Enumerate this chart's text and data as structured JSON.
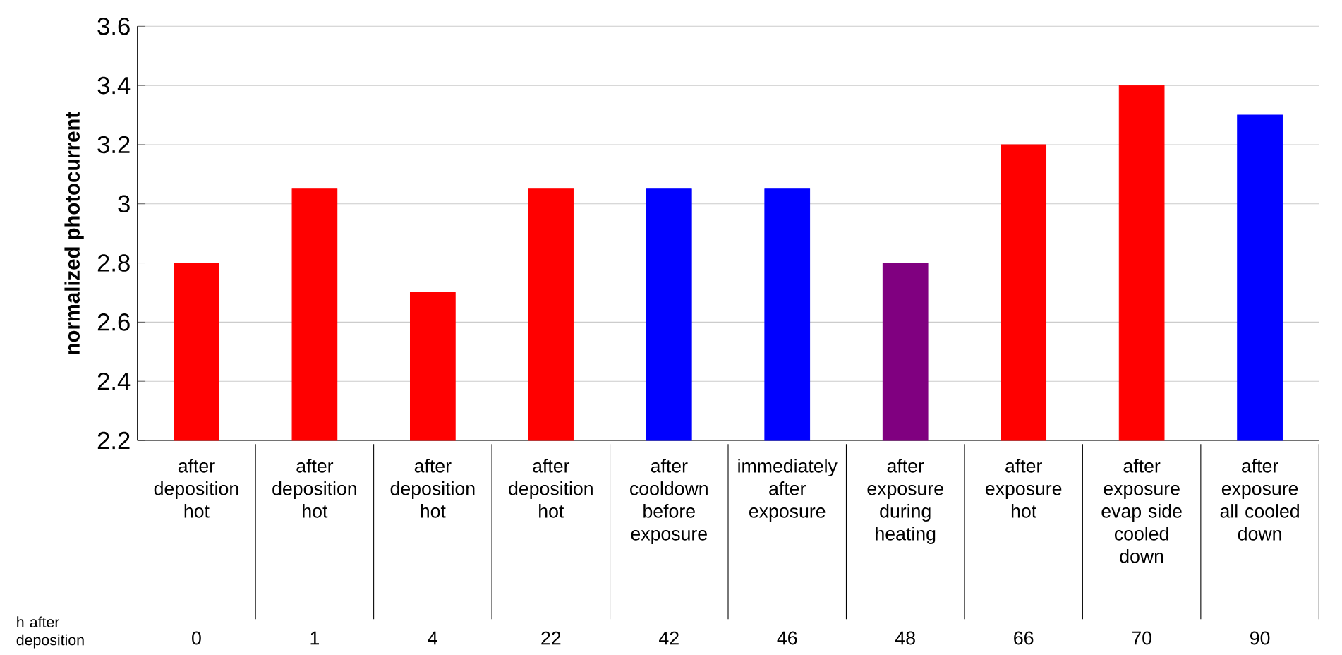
{
  "chart_data": {
    "type": "bar",
    "ylabel": "normalized photocurrent",
    "categories": [
      "after deposition hot",
      "after deposition hot",
      "after deposition hot",
      "after deposition hot",
      "after cooldown before exposure",
      "immediately after exposure",
      "after exposure during heating",
      "after exposure hot",
      "after exposure evap side cooled down",
      "after exposure all cooled down"
    ],
    "values": [
      2.8,
      3.05,
      2.7,
      3.05,
      3.05,
      3.05,
      2.8,
      3.2,
      3.4,
      3.3
    ],
    "colors": [
      "#ff0000",
      "#ff0000",
      "#ff0000",
      "#ff0000",
      "#0000ff",
      "#0000ff",
      "#800080",
      "#ff0000",
      "#ff0000",
      "#0000ff"
    ],
    "ylim": [
      2.2,
      3.6
    ],
    "yticks": [
      2.2,
      2.4,
      2.6,
      2.8,
      3,
      3.2,
      3.4,
      3.6
    ],
    "grid": "y",
    "annotations": [
      "h after deposition",
      "0",
      "1",
      "4",
      "22",
      "42",
      "46",
      "48",
      "66",
      "70",
      "90"
    ]
  }
}
